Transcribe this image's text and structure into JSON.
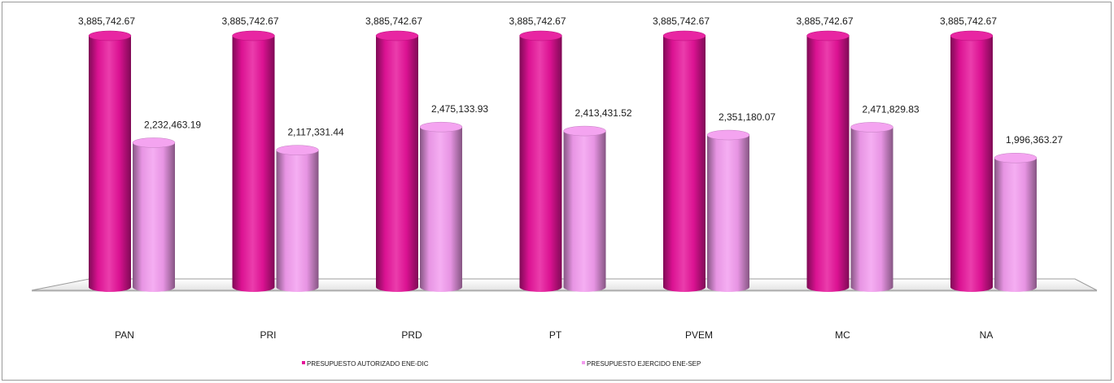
{
  "chart_data": {
    "type": "bar",
    "style": "3d-cylinder",
    "categories": [
      "PAN",
      "PRI",
      "PRD",
      "PT",
      "PVEM",
      "MC",
      "NA"
    ],
    "series": [
      {
        "name": "PRESUPUESTO AUTORIZADO ENE-DIC",
        "color": "#e6139a",
        "values": [
          3885742.67,
          3885742.67,
          3885742.67,
          3885742.67,
          3885742.67,
          3885742.67,
          3885742.67
        ],
        "labels": [
          "3,885,742.67",
          "3,885,742.67",
          "3,885,742.67",
          "3,885,742.67",
          "3,885,742.67",
          "3,885,742.67",
          "3,885,742.67"
        ]
      },
      {
        "name": "PRESUPUESTO EJERCIDO ENE-SEP",
        "color": "#f39cef",
        "values": [
          2232463.19,
          2117331.44,
          2475133.93,
          2413431.52,
          2351180.07,
          2471829.83,
          1996363.27
        ],
        "labels": [
          "2,232,463.19",
          "2,117,331.44",
          "2,475,133.93",
          "2,413,431.52",
          "2,351,180.07",
          "2,471,829.83",
          "1,996,363.27"
        ]
      }
    ],
    "ylim": [
      0,
      3885742.67
    ],
    "grid": false,
    "legend_position": "bottom"
  }
}
